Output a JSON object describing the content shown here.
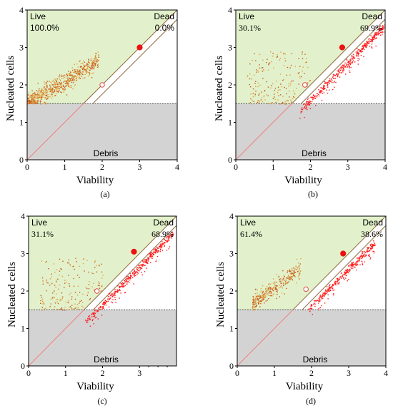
{
  "chart_data": [
    {
      "type": "scatter",
      "panel": "(a)",
      "xlabel": "Viability",
      "ylabel": "Nucleated cells",
      "xlim": [
        0,
        4
      ],
      "ylim": [
        0,
        4
      ],
      "xticks": [
        "0",
        "1",
        "2",
        "3",
        "4"
      ],
      "yticks": [
        "0",
        "1",
        "2",
        "3",
        "4"
      ],
      "gates": {
        "live": "Live",
        "dead": "Dead",
        "debris": "Debris"
      },
      "live_pct": "100.0%",
      "dead_pct": "0.0%",
      "debris_threshold": 1.5,
      "gate_line": {
        "from": [
          0,
          0
        ],
        "to": [
          4,
          4
        ],
        "markers": [
          [
            2,
            2
          ],
          [
            3,
            3
          ]
        ]
      },
      "populations": [
        {
          "gate": "live",
          "x_range": [
            0.0,
            1.9
          ],
          "y_from_x": "y ≈ 1.5 + 0.62x",
          "density": "high"
        }
      ]
    },
    {
      "type": "scatter",
      "panel": "(b)",
      "xlabel": "Viability",
      "ylabel": "Nucleated cells",
      "xlim": [
        0,
        4
      ],
      "ylim": [
        0,
        4
      ],
      "xticks": [
        "0",
        "1",
        "2",
        "3",
        "4"
      ],
      "yticks": [
        "0",
        "1",
        "2",
        "3",
        "4"
      ],
      "gates": {
        "live": "Live",
        "dead": "Dead",
        "debris": "Debris"
      },
      "live_pct": "30.1%",
      "dead_pct": "69.9%",
      "debris_threshold": 1.5,
      "gate_line": {
        "from": [
          0,
          0
        ],
        "to": [
          4,
          4
        ],
        "markers": [
          [
            1.85,
            2.0
          ],
          [
            2.85,
            3.0
          ]
        ]
      },
      "populations": [
        {
          "gate": "live",
          "x_range": [
            0.3,
            2.0
          ],
          "y_range": [
            1.5,
            2.9
          ],
          "density": "low"
        },
        {
          "gate": "dead",
          "x_range": [
            1.7,
            4.0
          ],
          "y_from_x": "y ≈ x - 0.4",
          "density": "high"
        }
      ]
    },
    {
      "type": "scatter",
      "panel": "(c)",
      "xlabel": "Viability",
      "ylabel": "Nucleated cells",
      "xlim": [
        0,
        4
      ],
      "ylim": [
        0,
        4
      ],
      "xticks": [
        "0",
        "1",
        "2",
        "3"
      ],
      "yticks": [
        "0",
        "1",
        "2",
        "3",
        "4"
      ],
      "gates": {
        "live": "Live",
        "dead": "Dead",
        "debris": "Debris"
      },
      "live_pct": "31.1%",
      "dead_pct": "68.9%",
      "debris_threshold": 1.5,
      "gate_line": {
        "from": [
          0,
          0
        ],
        "to": [
          4,
          4
        ],
        "markers": [
          [
            1.85,
            2.0
          ],
          [
            2.85,
            3.05
          ]
        ]
      },
      "populations": [
        {
          "gate": "live",
          "x_range": [
            0.3,
            2.0
          ],
          "y_range": [
            1.5,
            2.9
          ],
          "density": "low"
        },
        {
          "gate": "dead",
          "x_range": [
            1.5,
            3.9
          ],
          "y_from_x": "y ≈ x - 0.35",
          "density": "high"
        }
      ]
    },
    {
      "type": "scatter",
      "panel": "(d)",
      "xlabel": "Viability",
      "ylabel": "Nucleated cells",
      "xlim": [
        0,
        4
      ],
      "ylim": [
        0,
        4
      ],
      "xticks": [
        "0",
        "1",
        "2",
        "3",
        "4"
      ],
      "yticks": [
        "0",
        "1",
        "2",
        "3",
        "4"
      ],
      "gates": {
        "live": "Live",
        "dead": "Dead",
        "debris": "Debris"
      },
      "live_pct": "61.4%",
      "dead_pct": "38.6%",
      "debris_threshold": 1.5,
      "gate_line": {
        "from": [
          0,
          0
        ],
        "to": [
          4,
          4
        ],
        "markers": [
          [
            1.85,
            2.05
          ],
          [
            2.85,
            3.0
          ]
        ]
      },
      "populations": [
        {
          "gate": "live",
          "x_range": [
            0.4,
            1.7
          ],
          "y_from_x": "y ≈ 1.35 + 0.75x",
          "density": "medium"
        },
        {
          "gate": "dead",
          "x_range": [
            1.9,
            3.7
          ],
          "y_from_x": "y ≈ x - 0.4",
          "density": "medium"
        }
      ]
    }
  ]
}
